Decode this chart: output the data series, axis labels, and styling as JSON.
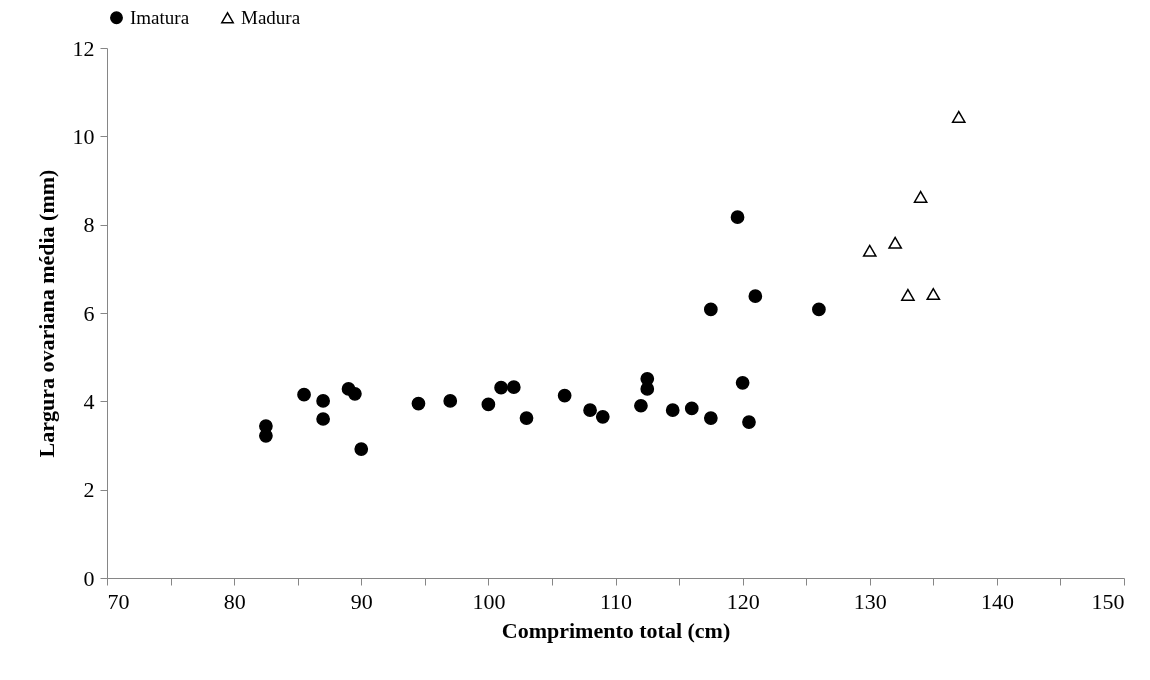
{
  "chart_data": {
    "type": "scatter",
    "xlabel": "Comprimento total (cm)",
    "ylabel": "Largura ovariana média (mm)",
    "xlim": [
      70,
      150
    ],
    "xticks": [
      70,
      {
        "value": 75,
        "label": null
      },
      80,
      {
        "value": 85,
        "label": null
      },
      90,
      {
        "value": 95,
        "label": null
      },
      100,
      {
        "value": 105,
        "label": null
      },
      110,
      {
        "value": 115,
        "label": null
      },
      120,
      {
        "value": 125,
        "label": null
      },
      130,
      {
        "value": 135,
        "label": null
      },
      140,
      {
        "value": 145,
        "label": null
      },
      150
    ],
    "ylim": [
      0,
      12
    ],
    "yticks": [
      0,
      2,
      4,
      6,
      8,
      10,
      12
    ],
    "grid": false,
    "legend": "top",
    "series": [
      {
        "name": "Imatura",
        "color": "#000000",
        "marker": "circle",
        "x": [
          82.5,
          82.5,
          85.5,
          87,
          87,
          89,
          89.5,
          90,
          94.5,
          97,
          100,
          101,
          102,
          103,
          106,
          108,
          109,
          112,
          112.5,
          112.5,
          114.5,
          116,
          117.5,
          117.5,
          121,
          120,
          120.5,
          119.6,
          126
        ],
        "values": [
          3.44,
          3.22,
          4.15,
          4.01,
          3.6,
          4.28,
          4.17,
          2.92,
          3.95,
          4.01,
          3.93,
          4.31,
          4.32,
          3.62,
          4.13,
          3.8,
          3.65,
          3.9,
          4.51,
          4.28,
          3.8,
          3.84,
          3.62,
          6.08,
          6.38,
          4.42,
          3.53,
          8.17,
          6.08
        ]
      },
      {
        "name": "Madura",
        "color": "#000000",
        "marker": "triangle",
        "x": [
          137,
          134,
          130,
          132,
          133,
          135
        ],
        "values": [
          10.44,
          8.63,
          7.41,
          7.59,
          6.41,
          6.43
        ]
      }
    ]
  }
}
